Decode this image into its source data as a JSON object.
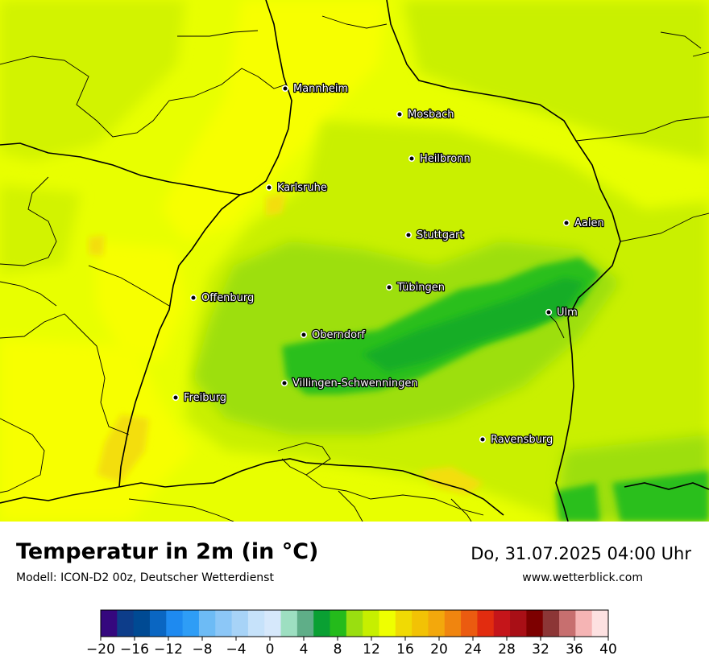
{
  "map": {
    "cities": [
      {
        "name": "Mannheim"
      },
      {
        "name": "Mosbach"
      },
      {
        "name": "Heilbronn"
      },
      {
        "name": "Karlsruhe"
      },
      {
        "name": "Aalen"
      },
      {
        "name": "Stuttgart"
      },
      {
        "name": "Tübingen"
      },
      {
        "name": "Offenburg"
      },
      {
        "name": "Ulm"
      },
      {
        "name": "Oberndorf"
      },
      {
        "name": "Villingen-Schwenningen"
      },
      {
        "name": "Freiburg"
      },
      {
        "name": "Ravensburg"
      }
    ],
    "colors": {
      "base": "#e6ff00",
      "warm": "#f5ff00",
      "mid": "#c8f000",
      "cool": "#9adf10",
      "cold": "#2cbf1c",
      "hot": "#f3de0b",
      "border": "#000000"
    }
  },
  "footer": {
    "title": "Temperatur in 2m (in °C)",
    "subtitle": "Modell: ICON-D2 00z, Deutscher Wetterdienst",
    "date": "Do, 31.07.2025 04:00 Uhr",
    "website": "www.wetterblick.com"
  },
  "legend": {
    "min": -20,
    "max": 40,
    "step": 2,
    "ticks": [
      "−20",
      "−16",
      "−12",
      "−8",
      "−4",
      "0",
      "4",
      "8",
      "12",
      "16",
      "20",
      "24",
      "28",
      "32",
      "36",
      "40"
    ],
    "colors": [
      "#35087e",
      "#0d3d8a",
      "#004a93",
      "#0a66c2",
      "#1e8af0",
      "#2e9df6",
      "#6dbbf5",
      "#8cc7f7",
      "#a7d3f7",
      "#c6e2fa",
      "#d6e8fb",
      "#9ddfc1",
      "#5fae88",
      "#0aa033",
      "#24bb1b",
      "#9ade10",
      "#c6ef00",
      "#efff00",
      "#f0da04",
      "#f2c205",
      "#f3a80c",
      "#f0850f",
      "#eb5b10",
      "#e22c0f",
      "#c5151a",
      "#a90f16",
      "#7d0000",
      "#8c3636",
      "#c76f6f",
      "#f5b4b4",
      "#fde1e1"
    ]
  }
}
